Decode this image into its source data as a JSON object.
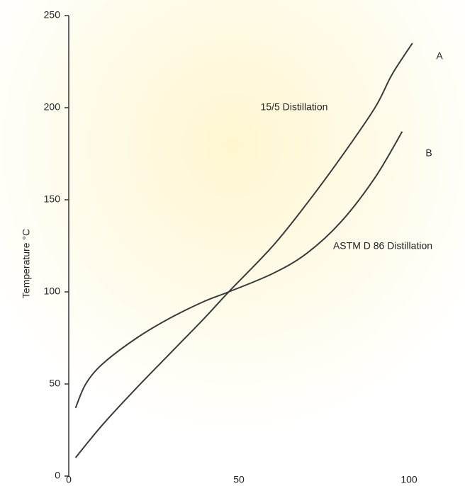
{
  "chart_data": {
    "type": "line",
    "y_label": "Temperature °C",
    "annotations": [
      "15/5 Distillation",
      "ASTM D 86 Distillation"
    ],
    "series": [
      {
        "name": "A",
        "color": "#3a3a3a",
        "x": [
          2,
          10,
          20,
          30,
          40,
          47,
          60,
          70,
          80,
          90,
          95,
          101
        ],
        "values": [
          10,
          28,
          48,
          67,
          86,
          100,
          125,
          148,
          173,
          200,
          218,
          235
        ]
      },
      {
        "name": "B",
        "color": "#3a3a3a",
        "x": [
          2,
          5,
          10,
          20,
          30,
          40,
          47,
          60,
          70,
          80,
          90,
          98
        ],
        "values": [
          37,
          50,
          61,
          75,
          86,
          95,
          100,
          110,
          121,
          138,
          162,
          187
        ]
      }
    ],
    "xlim": [
      0,
      100
    ],
    "xticks": [
      0,
      50,
      100
    ],
    "ylim": [
      0,
      250
    ],
    "yticks": [
      0,
      50,
      100,
      150,
      200,
      250
    ]
  }
}
